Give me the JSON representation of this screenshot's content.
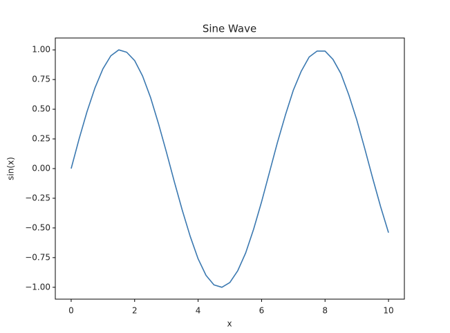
{
  "chart_data": {
    "type": "line",
    "title": "Sine Wave",
    "x_label": "x",
    "y_label": "sin(x)",
    "x": [
      0,
      0.25,
      0.5,
      0.75,
      1,
      1.25,
      1.5,
      1.75,
      2,
      2.25,
      2.5,
      2.75,
      3,
      3.25,
      3.5,
      3.75,
      4,
      4.25,
      4.5,
      4.75,
      5,
      5.25,
      5.5,
      5.75,
      6,
      6.25,
      6.5,
      6.75,
      7,
      7.25,
      7.5,
      7.75,
      8,
      8.25,
      8.5,
      8.75,
      9,
      9.25,
      9.5,
      9.75,
      10
    ],
    "values": [
      0,
      0.25,
      0.48,
      0.68,
      0.84,
      0.95,
      1.0,
      0.98,
      0.91,
      0.78,
      0.6,
      0.38,
      0.14,
      -0.11,
      -0.35,
      -0.57,
      -0.76,
      -0.9,
      -0.98,
      -1.0,
      -0.96,
      -0.86,
      -0.71,
      -0.51,
      -0.28,
      -0.03,
      0.22,
      0.45,
      0.66,
      0.82,
      0.94,
      0.99,
      0.99,
      0.92,
      0.8,
      0.62,
      0.41,
      0.17,
      -0.08,
      -0.32,
      -0.54
    ],
    "color": "#3a78b0",
    "xlim": [
      -0.5,
      10.5
    ],
    "xticks": [
      0,
      2,
      4,
      6,
      8,
      10
    ],
    "ylim": [
      -1.1,
      1.1
    ],
    "yticks": [
      {
        "value": -1,
        "label": "−1.00"
      },
      {
        "value": -0.75,
        "label": "−0.75"
      },
      {
        "value": -0.5,
        "label": "−0.50"
      },
      {
        "value": -0.25,
        "label": "−0.25"
      },
      {
        "value": 0,
        "label": "0.00"
      },
      {
        "value": 0.25,
        "label": "0.25"
      },
      {
        "value": 0.5,
        "label": "0.50"
      },
      {
        "value": 0.75,
        "label": "0.75"
      },
      {
        "value": 1,
        "label": "1.00"
      }
    ],
    "grid": false
  }
}
